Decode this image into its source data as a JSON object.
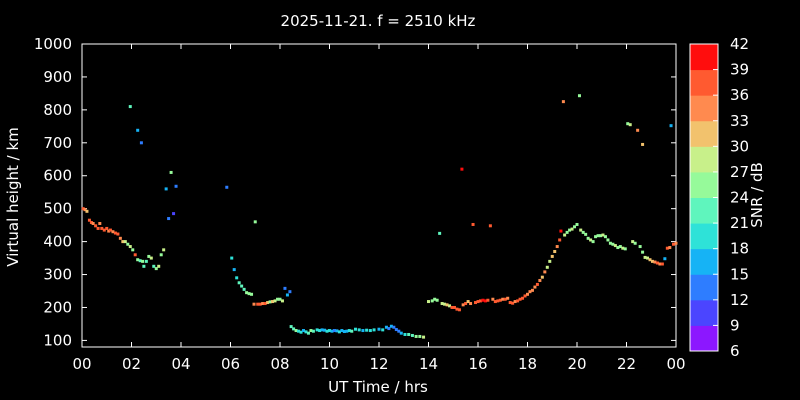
{
  "chart_data": {
    "type": "scatter",
    "title": "2025-11-21. f = 2510 kHz",
    "xlabel": "UT Time / hrs",
    "ylabel": "Virtual height / km",
    "xlim": [
      0,
      24
    ],
    "ylim": [
      80,
      1000
    ],
    "xticks": [
      "00",
      "02",
      "04",
      "06",
      "08",
      "10",
      "12",
      "14",
      "16",
      "18",
      "20",
      "22",
      "00"
    ],
    "yticks": [
      100,
      200,
      300,
      400,
      500,
      600,
      700,
      800,
      900,
      1000
    ],
    "colorbar": {
      "label": "SNR / dB",
      "ticks": [
        6,
        9,
        12,
        15,
        18,
        21,
        24,
        27,
        30,
        33,
        36,
        39,
        42
      ],
      "colors": [
        "#8c17ff",
        "#4b45ff",
        "#2e7dff",
        "#16b3f5",
        "#2ee2d8",
        "#5ff5bd",
        "#96fa9a",
        "#c8f08a",
        "#f2c26d",
        "#ff8a4f",
        "#ff5a30",
        "#ff0d0d"
      ]
    },
    "grid": false,
    "points": [
      [
        0.05,
        500,
        36
      ],
      [
        0.12,
        497,
        33
      ],
      [
        0.2,
        492,
        30
      ],
      [
        0.3,
        465,
        36
      ],
      [
        0.38,
        458,
        36
      ],
      [
        0.45,
        455,
        33
      ],
      [
        0.55,
        448,
        36
      ],
      [
        0.65,
        440,
        36
      ],
      [
        0.72,
        455,
        33
      ],
      [
        0.8,
        440,
        36
      ],
      [
        0.9,
        435,
        36
      ],
      [
        1.0,
        440,
        36
      ],
      [
        1.08,
        432,
        33
      ],
      [
        1.15,
        435,
        36
      ],
      [
        1.25,
        430,
        33
      ],
      [
        1.35,
        426,
        36
      ],
      [
        1.45,
        423,
        36
      ],
      [
        1.55,
        410,
        33
      ],
      [
        1.65,
        400,
        30
      ],
      [
        1.75,
        400,
        27
      ],
      [
        1.85,
        392,
        24
      ],
      [
        1.95,
        385,
        27
      ],
      [
        2.05,
        375,
        24
      ],
      [
        2.15,
        360,
        36
      ],
      [
        2.25,
        345,
        24
      ],
      [
        2.35,
        342,
        21
      ],
      [
        2.45,
        340,
        24
      ],
      [
        2.5,
        325,
        21
      ],
      [
        2.6,
        340,
        21
      ],
      [
        2.7,
        355,
        24
      ],
      [
        2.8,
        350,
        27
      ],
      [
        2.9,
        325,
        21
      ],
      [
        3.0,
        318,
        24
      ],
      [
        3.1,
        325,
        27
      ],
      [
        3.2,
        360,
        24
      ],
      [
        3.3,
        375,
        27
      ],
      [
        1.95,
        810,
        21
      ],
      [
        2.25,
        738,
        15
      ],
      [
        2.4,
        700,
        12
      ],
      [
        3.4,
        560,
        15
      ],
      [
        3.5,
        470,
        12
      ],
      [
        3.6,
        610,
        24
      ],
      [
        3.7,
        485,
        9
      ],
      [
        3.8,
        568,
        12
      ],
      [
        5.85,
        565,
        12
      ],
      [
        6.05,
        350,
        18
      ],
      [
        6.15,
        315,
        15
      ],
      [
        6.25,
        290,
        18
      ],
      [
        6.35,
        275,
        21
      ],
      [
        6.45,
        265,
        21
      ],
      [
        6.55,
        255,
        21
      ],
      [
        6.65,
        245,
        24
      ],
      [
        6.75,
        242,
        24
      ],
      [
        6.85,
        240,
        24
      ],
      [
        6.95,
        210,
        33
      ],
      [
        7.0,
        460,
        24
      ],
      [
        7.1,
        210,
        36
      ],
      [
        7.2,
        210,
        36
      ],
      [
        7.3,
        212,
        33
      ],
      [
        7.4,
        212,
        36
      ],
      [
        7.5,
        215,
        30
      ],
      [
        7.6,
        217,
        24
      ],
      [
        7.7,
        218,
        30
      ],
      [
        7.8,
        220,
        27
      ],
      [
        7.9,
        225,
        24
      ],
      [
        8.0,
        225,
        24
      ],
      [
        8.1,
        220,
        27
      ],
      [
        8.2,
        258,
        12
      ],
      [
        8.3,
        238,
        15
      ],
      [
        8.4,
        248,
        12
      ],
      [
        8.45,
        142,
        21
      ],
      [
        8.55,
        135,
        21
      ],
      [
        8.65,
        130,
        24
      ],
      [
        8.75,
        128,
        18
      ],
      [
        8.85,
        125,
        18
      ],
      [
        8.95,
        130,
        15
      ],
      [
        9.05,
        126,
        18
      ],
      [
        9.15,
        122,
        21
      ],
      [
        9.25,
        130,
        24
      ],
      [
        9.35,
        128,
        21
      ],
      [
        9.5,
        132,
        18
      ],
      [
        9.6,
        130,
        18
      ],
      [
        9.7,
        132,
        15
      ],
      [
        9.8,
        131,
        15
      ],
      [
        9.9,
        128,
        18
      ],
      [
        10.0,
        130,
        18
      ],
      [
        10.1,
        128,
        15
      ],
      [
        10.2,
        130,
        12
      ],
      [
        10.3,
        129,
        15
      ],
      [
        10.4,
        126,
        18
      ],
      [
        10.5,
        130,
        15
      ],
      [
        10.6,
        127,
        15
      ],
      [
        10.7,
        128,
        15
      ],
      [
        10.8,
        130,
        18
      ],
      [
        10.9,
        128,
        21
      ],
      [
        11.05,
        134,
        18
      ],
      [
        11.2,
        132,
        18
      ],
      [
        11.35,
        130,
        15
      ],
      [
        11.5,
        131,
        18
      ],
      [
        11.65,
        130,
        18
      ],
      [
        11.8,
        132,
        18
      ],
      [
        12.0,
        134,
        15
      ],
      [
        12.15,
        132,
        18
      ],
      [
        12.3,
        140,
        15
      ],
      [
        12.4,
        136,
        12
      ],
      [
        12.5,
        143,
        15
      ],
      [
        12.6,
        140,
        12
      ],
      [
        12.7,
        133,
        12
      ],
      [
        12.8,
        128,
        12
      ],
      [
        12.9,
        122,
        15
      ],
      [
        13.05,
        118,
        18
      ],
      [
        13.2,
        118,
        21
      ],
      [
        13.35,
        115,
        21
      ],
      [
        13.5,
        112,
        24
      ],
      [
        13.65,
        112,
        24
      ],
      [
        13.8,
        110,
        27
      ],
      [
        14.0,
        218,
        27
      ],
      [
        14.15,
        220,
        24
      ],
      [
        14.25,
        225,
        24
      ],
      [
        14.35,
        222,
        24
      ],
      [
        14.45,
        425,
        21
      ],
      [
        14.55,
        212,
        27
      ],
      [
        14.65,
        210,
        27
      ],
      [
        14.75,
        208,
        30
      ],
      [
        14.85,
        205,
        27
      ],
      [
        14.95,
        200,
        36
      ],
      [
        15.05,
        200,
        36
      ],
      [
        15.15,
        195,
        36
      ],
      [
        15.25,
        193,
        36
      ],
      [
        15.35,
        620,
        39
      ],
      [
        15.4,
        208,
        33
      ],
      [
        15.5,
        212,
        36
      ],
      [
        15.6,
        218,
        30
      ],
      [
        15.7,
        212,
        33
      ],
      [
        15.8,
        452,
        36
      ],
      [
        15.9,
        215,
        36
      ],
      [
        16.0,
        218,
        36
      ],
      [
        16.1,
        220,
        36
      ],
      [
        16.2,
        222,
        39
      ],
      [
        16.3,
        220,
        39
      ],
      [
        16.4,
        222,
        36
      ],
      [
        16.5,
        448,
        36
      ],
      [
        16.6,
        225,
        33
      ],
      [
        16.7,
        218,
        36
      ],
      [
        16.8,
        220,
        36
      ],
      [
        16.9,
        222,
        36
      ],
      [
        17.0,
        225,
        33
      ],
      [
        17.1,
        225,
        36
      ],
      [
        17.2,
        228,
        33
      ],
      [
        17.3,
        215,
        36
      ],
      [
        17.4,
        213,
        36
      ],
      [
        17.5,
        218,
        33
      ],
      [
        17.6,
        220,
        36
      ],
      [
        17.7,
        225,
        36
      ],
      [
        17.8,
        228,
        36
      ],
      [
        17.9,
        235,
        36
      ],
      [
        18.0,
        240,
        33
      ],
      [
        18.1,
        248,
        33
      ],
      [
        18.2,
        252,
        33
      ],
      [
        18.3,
        262,
        33
      ],
      [
        18.4,
        270,
        36
      ],
      [
        18.5,
        282,
        33
      ],
      [
        18.6,
        292,
        30
      ],
      [
        18.7,
        308,
        33
      ],
      [
        18.8,
        322,
        27
      ],
      [
        18.9,
        340,
        27
      ],
      [
        19.0,
        355,
        30
      ],
      [
        19.1,
        370,
        30
      ],
      [
        19.2,
        385,
        33
      ],
      [
        19.3,
        405,
        36
      ],
      [
        19.35,
        432,
        39
      ],
      [
        19.45,
        825,
        33
      ],
      [
        19.5,
        420,
        27
      ],
      [
        19.6,
        428,
        24
      ],
      [
        19.7,
        435,
        24
      ],
      [
        19.8,
        438,
        27
      ],
      [
        19.9,
        445,
        24
      ],
      [
        20.0,
        452,
        24
      ],
      [
        20.1,
        843,
        24
      ],
      [
        20.15,
        435,
        27
      ],
      [
        20.25,
        428,
        24
      ],
      [
        20.35,
        422,
        24
      ],
      [
        20.45,
        410,
        24
      ],
      [
        20.55,
        405,
        27
      ],
      [
        20.65,
        400,
        24
      ],
      [
        20.75,
        415,
        24
      ],
      [
        20.85,
        418,
        24
      ],
      [
        20.95,
        418,
        24
      ],
      [
        21.05,
        420,
        27
      ],
      [
        21.15,
        415,
        24
      ],
      [
        21.25,
        405,
        24
      ],
      [
        21.35,
        395,
        24
      ],
      [
        21.45,
        392,
        24
      ],
      [
        21.55,
        388,
        27
      ],
      [
        21.65,
        382,
        24
      ],
      [
        21.75,
        385,
        24
      ],
      [
        21.85,
        380,
        27
      ],
      [
        21.95,
        378,
        24
      ],
      [
        22.05,
        758,
        24
      ],
      [
        22.15,
        755,
        27
      ],
      [
        22.25,
        400,
        27
      ],
      [
        22.35,
        395,
        24
      ],
      [
        22.45,
        738,
        33
      ],
      [
        22.55,
        385,
        24
      ],
      [
        22.65,
        695,
        30
      ],
      [
        22.65,
        368,
        24
      ],
      [
        22.75,
        352,
        27
      ],
      [
        22.85,
        350,
        27
      ],
      [
        22.95,
        345,
        30
      ],
      [
        23.05,
        340,
        30
      ],
      [
        23.15,
        338,
        33
      ],
      [
        23.25,
        335,
        36
      ],
      [
        23.35,
        332,
        33
      ],
      [
        23.45,
        332,
        36
      ],
      [
        23.55,
        348,
        15
      ],
      [
        23.65,
        380,
        36
      ],
      [
        23.8,
        752,
        15
      ],
      [
        23.75,
        382,
        33
      ],
      [
        23.9,
        392,
        36
      ],
      [
        24.0,
        395,
        33
      ]
    ]
  }
}
